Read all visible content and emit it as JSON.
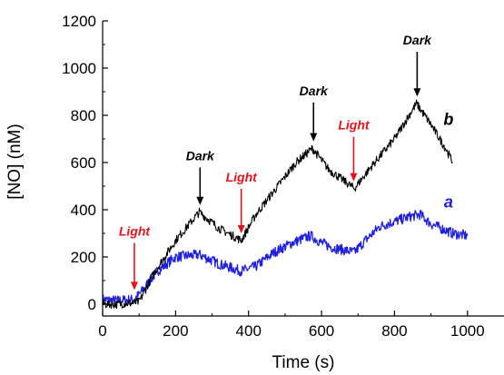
{
  "chart_data": {
    "type": "line",
    "xlabel": "Time (s)",
    "ylabel": "[NO] (nM)",
    "xlim": [
      0,
      1100
    ],
    "ylim": [
      -50,
      1200
    ],
    "xticks": [
      0,
      200,
      400,
      600,
      800,
      1000
    ],
    "yticks": [
      0,
      200,
      400,
      600,
      800,
      1000,
      1200
    ],
    "grid": false,
    "series": [
      {
        "name": "a",
        "color": "#1f1fe0",
        "x": [
          0,
          40,
          85,
          100,
          120,
          150,
          200,
          265,
          320,
          380,
          420,
          470,
          520,
          570,
          600,
          630,
          690,
          720,
          760,
          800,
          840,
          870,
          900,
          930,
          960,
          1000
        ],
        "y": [
          20,
          15,
          20,
          40,
          80,
          140,
          200,
          210,
          170,
          140,
          160,
          220,
          260,
          290,
          260,
          240,
          220,
          270,
          330,
          350,
          370,
          380,
          340,
          320,
          300,
          290
        ]
      },
      {
        "name": "b",
        "color": "#000000",
        "x": [
          0,
          40,
          85,
          100,
          140,
          200,
          265,
          320,
          380,
          420,
          480,
          530,
          575,
          620,
          690,
          740,
          800,
          860,
          900,
          940,
          960
        ],
        "y": [
          0,
          0,
          5,
          10,
          130,
          270,
          390,
          320,
          270,
          380,
          500,
          600,
          660,
          570,
          490,
          590,
          700,
          850,
          760,
          660,
          600
        ]
      }
    ],
    "annotations": [
      {
        "text": "Light",
        "x": 87,
        "y_tip": 60,
        "y_text": 290,
        "color": "#e8121c"
      },
      {
        "text": "Dark",
        "x": 267,
        "y_tip": 420,
        "y_text": 610,
        "color": "#000000"
      },
      {
        "text": "Light",
        "x": 380,
        "y_tip": 300,
        "y_text": 520,
        "color": "#e8121c"
      },
      {
        "text": "Dark",
        "x": 578,
        "y_tip": 690,
        "y_text": 885,
        "color": "#000000"
      },
      {
        "text": "Light",
        "x": 688,
        "y_tip": 520,
        "y_text": 740,
        "color": "#e8121c"
      },
      {
        "text": "Dark",
        "x": 862,
        "y_tip": 880,
        "y_text": 1100,
        "color": "#000000"
      }
    ],
    "series_labels": [
      {
        "text": "a",
        "x": 948,
        "y": 410,
        "color": "#1f1fe0"
      },
      {
        "text": "b",
        "x": 948,
        "y": 760,
        "color": "#000000"
      }
    ]
  }
}
